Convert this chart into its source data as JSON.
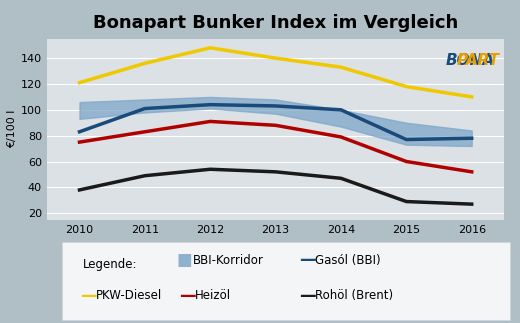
{
  "title": "Bonapart Bunker Index im Vergleich",
  "ylabel": "€/100 l",
  "years": [
    2010,
    2011,
    2012,
    2013,
    2014,
    2015,
    2016
  ],
  "ylim": [
    15,
    155
  ],
  "yticks": [
    20,
    40,
    60,
    80,
    100,
    120,
    140
  ],
  "gasol_bbi": [
    83,
    101,
    104,
    103,
    100,
    77,
    78
  ],
  "pkw_diesel": [
    121,
    136,
    148,
    140,
    133,
    118,
    110
  ],
  "heizoel": [
    75,
    83,
    91,
    88,
    79,
    60,
    52
  ],
  "rohoel_brent": [
    38,
    49,
    54,
    52,
    47,
    29,
    27
  ],
  "bbi_korridor_low": [
    93,
    98,
    101,
    97,
    87,
    73,
    72
  ],
  "bbi_korridor_high": [
    106,
    108,
    110,
    108,
    100,
    90,
    84
  ],
  "bbi_korridor_color": "#7da6c8",
  "gasol_color": "#1a4a7a",
  "pkw_color": "#f0c800",
  "heizoel_color": "#b00000",
  "rohoel_color": "#1a1a1a",
  "bg_color": "#c8d8e8",
  "plot_bg_alpha": 0.55,
  "lw": 2.5,
  "title_fontsize": 13,
  "legend_fontsize": 8.5,
  "axis_fontsize": 8,
  "ylabel_fontsize": 8
}
